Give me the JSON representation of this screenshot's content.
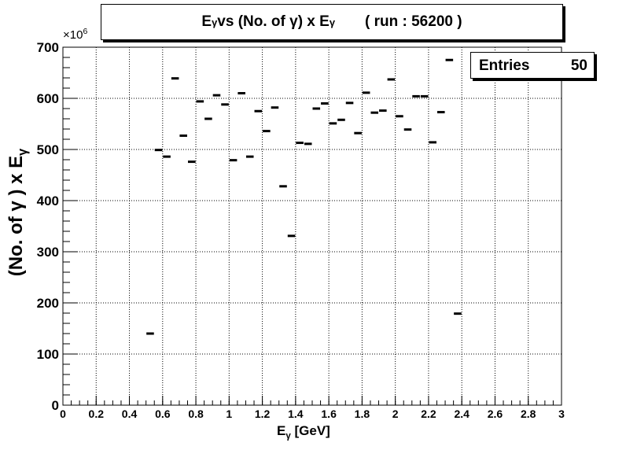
{
  "title": {
    "main": "E",
    "main_sub": "γ",
    "rest": " vs (No. of γ) x E",
    "rest_sub": "γ",
    "run": "( run : 56200 )"
  },
  "stats": {
    "label": "Entries",
    "value": "50"
  },
  "axes": {
    "xlabel_main": "E",
    "xlabel_sub": "γ",
    "xlabel_rest": " [GeV]",
    "ylabel_main": "(No. of γ ) x E",
    "ylabel_sub": "γ",
    "y_multiplier_base": "×10",
    "y_multiplier_exp": "6"
  },
  "chart_data": {
    "type": "scatter",
    "title": "Eγ vs (No. of γ) x Eγ ( run : 56200 )",
    "xlabel": "Eγ [GeV]",
    "ylabel": "(No. of γ ) x Eγ",
    "y_scale_factor": 1000000,
    "xlim": [
      0,
      3
    ],
    "ylim": [
      0,
      700
    ],
    "grid": true,
    "legend": "top-right",
    "entries": 50,
    "bin_width": 0.05,
    "x_ticks": [
      "0",
      "0.2",
      "0.4",
      "0.6",
      "0.8",
      "1",
      "1.2",
      "1.4",
      "1.6",
      "1.8",
      "2",
      "2.2",
      "2.4",
      "2.6",
      "2.8",
      "3"
    ],
    "y_ticks": [
      "0",
      "100",
      "200",
      "300",
      "400",
      "500",
      "600",
      "700"
    ],
    "x": [
      0.525,
      0.575,
      0.625,
      0.675,
      0.725,
      0.775,
      0.825,
      0.875,
      0.925,
      0.975,
      1.025,
      1.075,
      1.125,
      1.175,
      1.225,
      1.275,
      1.325,
      1.375,
      1.425,
      1.475,
      1.525,
      1.575,
      1.625,
      1.675,
      1.725,
      1.775,
      1.825,
      1.875,
      1.925,
      1.975,
      2.025,
      2.075,
      2.125,
      2.175,
      2.225,
      2.275,
      2.325,
      2.375
    ],
    "y": [
      140,
      499,
      486,
      639,
      527,
      476,
      594,
      560,
      606,
      588,
      479,
      610,
      486,
      575,
      536,
      582,
      428,
      331,
      513,
      511,
      580,
      590,
      551,
      558,
      591,
      532,
      611,
      572,
      576,
      637,
      565,
      539,
      604,
      604,
      514,
      573,
      675,
      179
    ]
  }
}
